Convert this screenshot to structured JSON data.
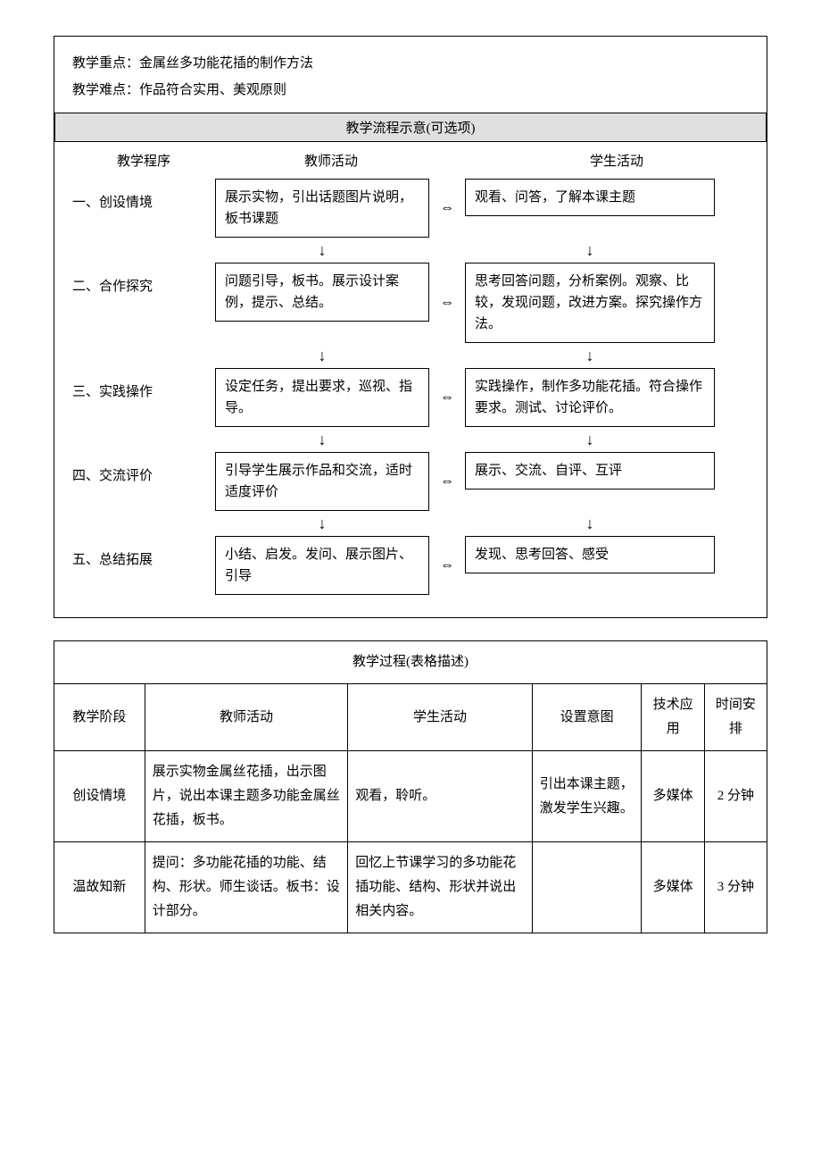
{
  "header": {
    "focus_label": "教学重点：",
    "focus_text": "金属丝多功能花插的制作方法",
    "difficulty_label": "教学难点：",
    "difficulty_text": "作品符合实用、美观原则"
  },
  "flow": {
    "title": "教学流程示意(可选项)",
    "col_program": "教学程序",
    "col_teacher": "教师活动",
    "col_student": "学生活动",
    "steps": [
      {
        "label": "一、创设情境",
        "teacher": "展示实物，引出话题图片说明，板书课题",
        "student": "观看、问答，了解本课主题"
      },
      {
        "label": "二、合作探究",
        "teacher": "问题引导，板书。展示设计案例，提示、总结。",
        "student": "思考回答问题，分析案例。观察、比较，发现问题，改进方案。探究操作方法。"
      },
      {
        "label": "三、实践操作",
        "teacher": "设定任务，提出要求，巡视、指导。",
        "student": "实践操作，制作多功能花插。符合操作要求。测试、讨论评价。"
      },
      {
        "label": "四、交流评价",
        "teacher": "引导学生展示作品和交流，适时适度评价",
        "student": "展示、交流、自评、互评"
      },
      {
        "label": "五、总结拓展",
        "teacher": "小结、启发。发问、展示图片、引导",
        "student": "发现、思考回答、感受"
      }
    ]
  },
  "process": {
    "title": "教学过程(表格描述)",
    "columns": {
      "stage": "教学阶段",
      "teacher": "教师活动",
      "student": "学生活动",
      "intent": "设置意图",
      "tech": "技术应用",
      "time": "时间安排"
    },
    "rows": [
      {
        "stage": "创设情境",
        "teacher": "展示实物金属丝花插，出示图片，说出本课主题多功能金属丝花插，板书。",
        "student": "观看，聆听。",
        "intent": "引出本课主题，激发学生兴趣。",
        "tech": "多媒体",
        "time": "2 分钟"
      },
      {
        "stage": "温故知新",
        "teacher": "提问：多功能花插的功能、结构、形状。师生谈话。板书：设计部分。",
        "student": "回忆上节课学习的多功能花插功能、结构、形状并说出相关内容。",
        "intent": "",
        "tech": "多媒体",
        "time": "3 分钟"
      }
    ]
  },
  "glyphs": {
    "bi_arrow": "⇔",
    "down_arrow": "↓"
  }
}
